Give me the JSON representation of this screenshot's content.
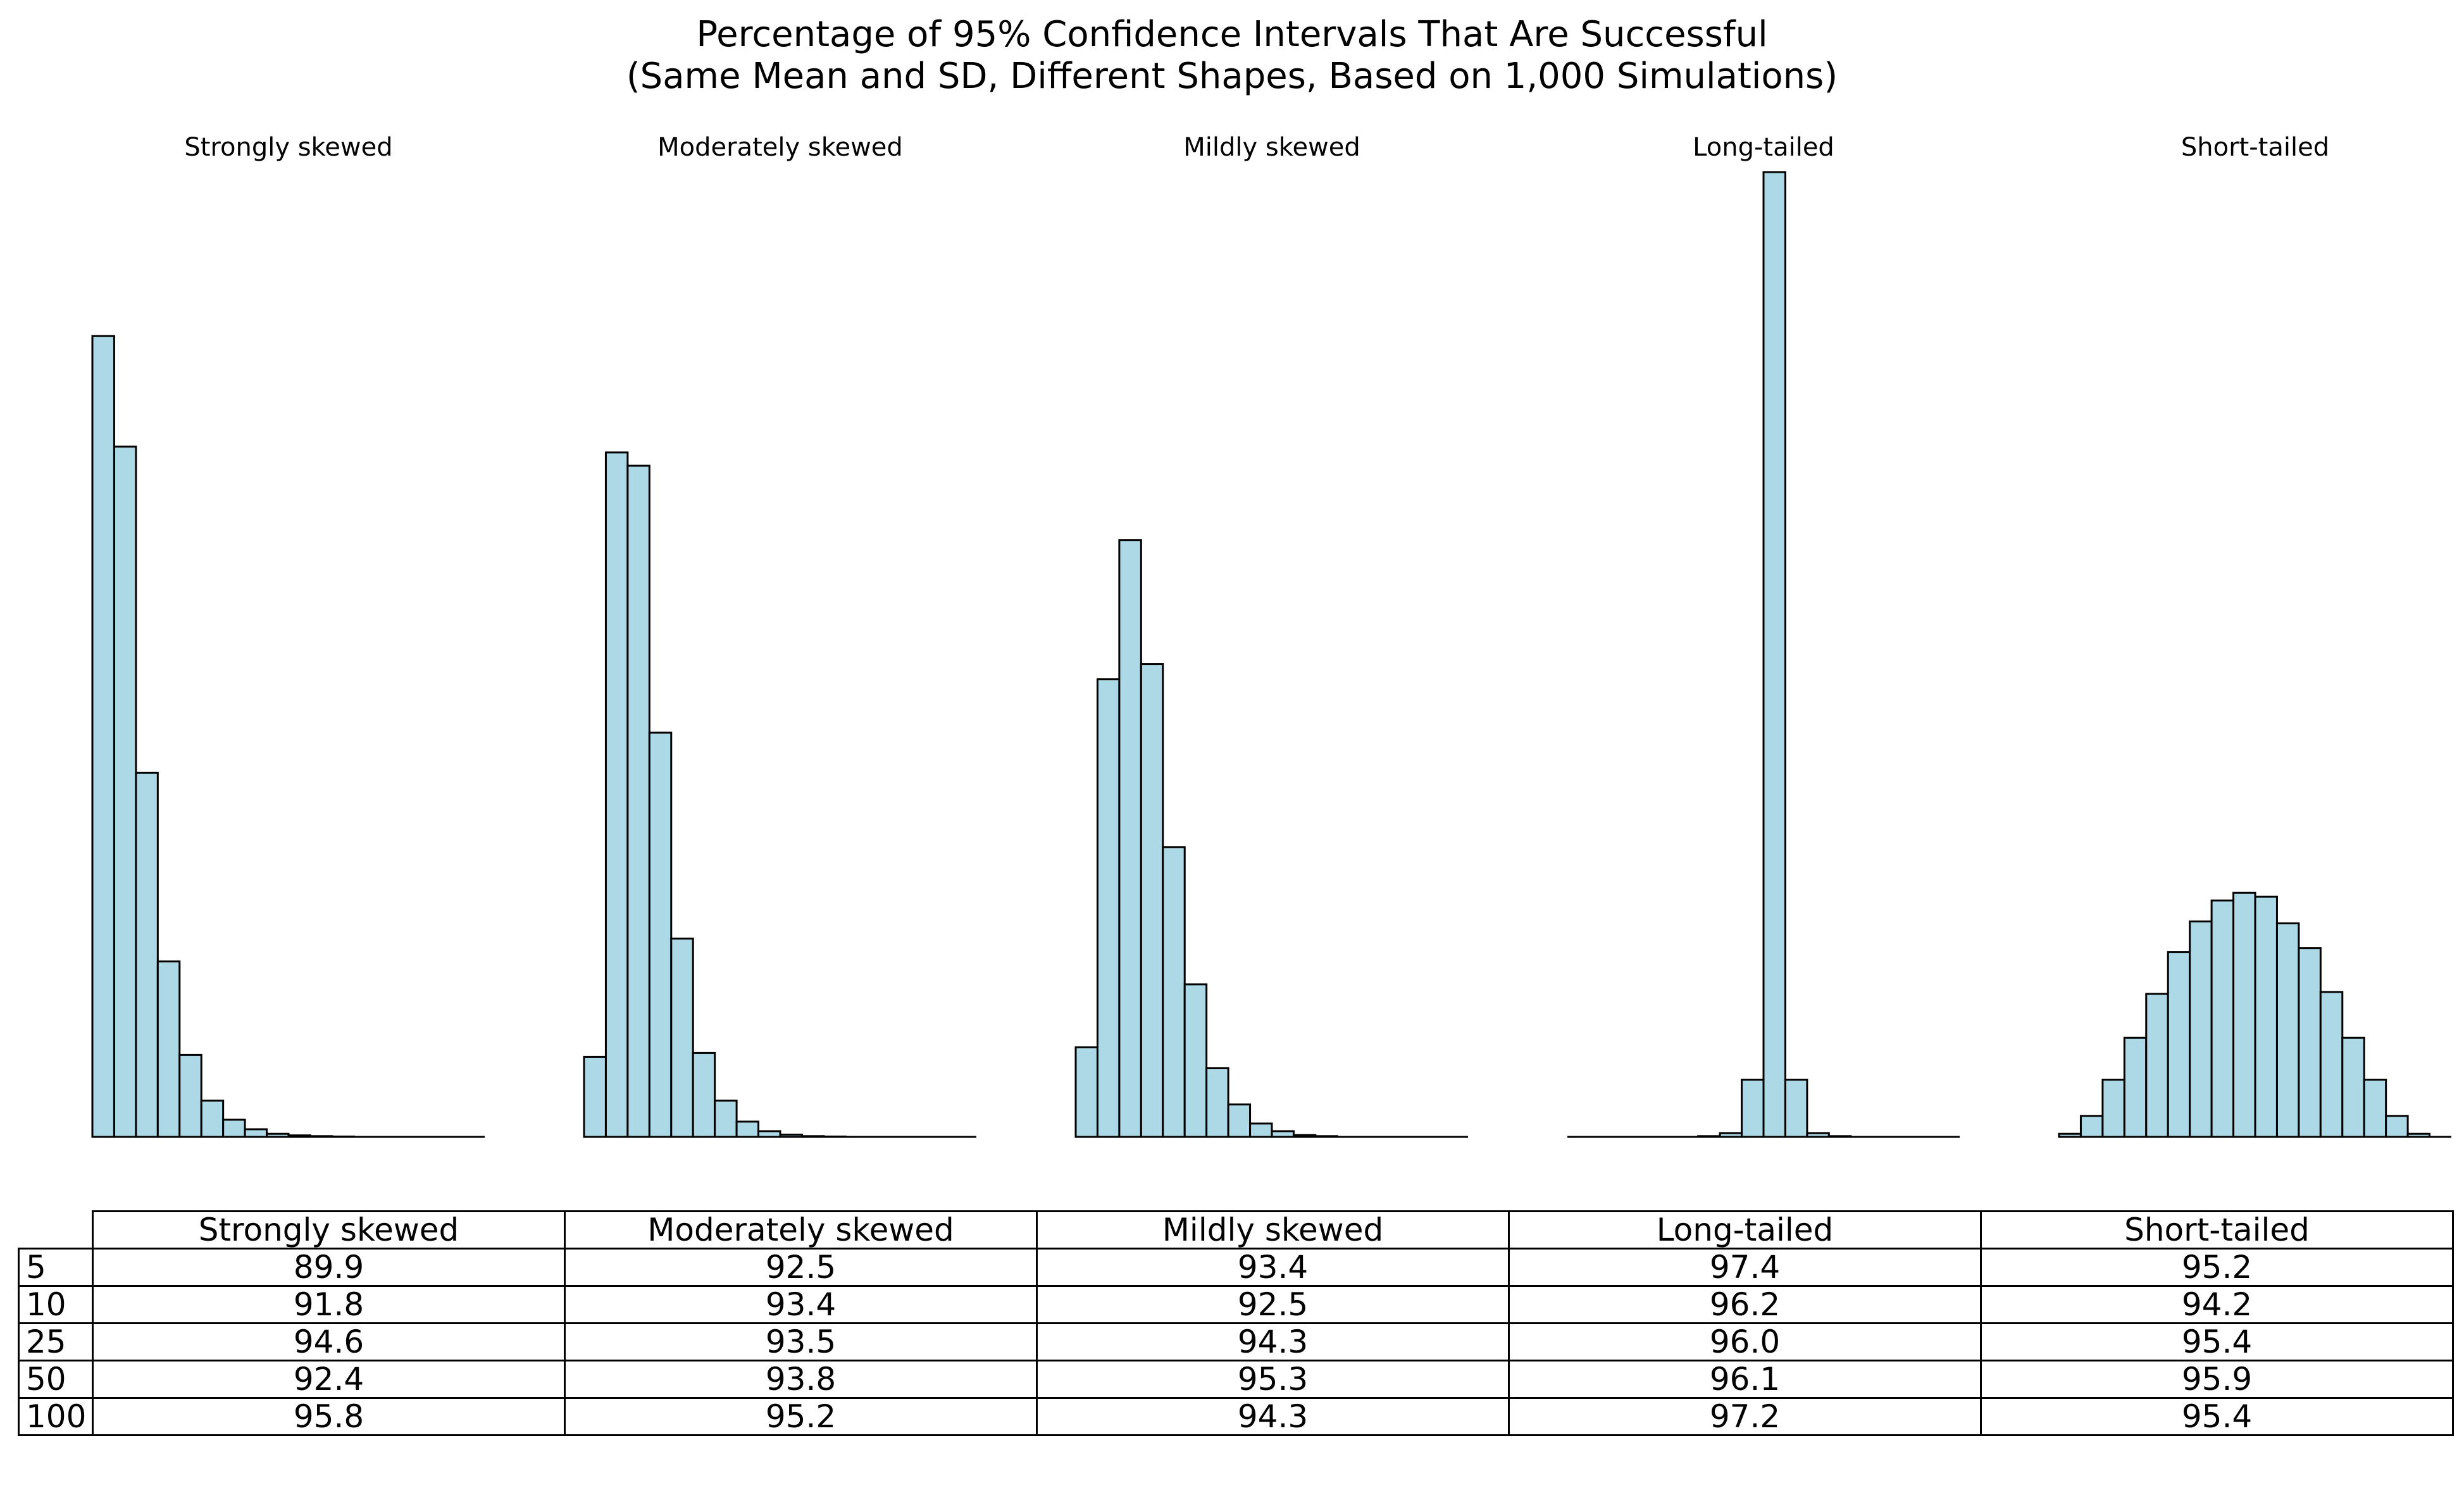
{
  "title_line1": "Percentage of 95% Confidence Intervals That Are Successful",
  "title_line2": "(Same Mean and SD, Different Shapes, Based on 1,000 Simulations)",
  "colors": {
    "bar_fill": "#add8e6",
    "bar_edge": "#000000"
  },
  "chart_data": [
    {
      "type": "bar",
      "title": "Strongly skewed",
      "xlabel": "",
      "ylabel": "",
      "axes": "off",
      "values": [
        2100,
        1810,
        955,
        460,
        215,
        95,
        45,
        20,
        8,
        4,
        2,
        1,
        0,
        0,
        0,
        0,
        0,
        0
      ]
    },
    {
      "type": "bar",
      "title": "Moderately skewed",
      "xlabel": "",
      "ylabel": "",
      "axes": "off",
      "values": [
        210,
        1795,
        1760,
        1060,
        520,
        220,
        95,
        40,
        15,
        6,
        2,
        1,
        0,
        0,
        0,
        0,
        0,
        0
      ]
    },
    {
      "type": "bar",
      "title": "Mildly skewed",
      "xlabel": "",
      "ylabel": "",
      "axes": "off",
      "values": [
        235,
        1200,
        1565,
        1240,
        760,
        400,
        180,
        85,
        35,
        15,
        5,
        2,
        0,
        0,
        0,
        0,
        0,
        0
      ]
    },
    {
      "type": "bar",
      "title": "Long-tailed",
      "xlabel": "",
      "ylabel": "",
      "axes": "off",
      "values": [
        0,
        0,
        0,
        0,
        0,
        0,
        2,
        10,
        150,
        2530,
        150,
        10,
        2,
        0,
        0,
        0,
        0,
        0
      ]
    },
    {
      "type": "bar",
      "title": "Short-tailed",
      "xlabel": "",
      "ylabel": "",
      "axes": "off",
      "values": [
        8,
        55,
        150,
        260,
        375,
        485,
        565,
        620,
        640,
        630,
        560,
        495,
        380,
        260,
        150,
        55,
        8,
        0
      ]
    },
    {
      "type": "table",
      "columns": [
        "Strongly skewed",
        "Moderately skewed",
        "Mildly skewed",
        "Long-tailed",
        "Short-tailed"
      ],
      "rows": [
        {
          "label": "5",
          "values": [
            "89.9",
            "92.5",
            "93.4",
            "97.4",
            "95.2"
          ]
        },
        {
          "label": "10",
          "values": [
            "91.8",
            "93.4",
            "92.5",
            "96.2",
            "94.2"
          ]
        },
        {
          "label": "25",
          "values": [
            "94.6",
            "93.5",
            "94.3",
            "96.0",
            "95.4"
          ]
        },
        {
          "label": "50",
          "values": [
            "92.4",
            "93.8",
            "95.3",
            "96.1",
            "95.9"
          ]
        },
        {
          "label": "100",
          "values": [
            "95.8",
            "95.2",
            "94.3",
            "97.2",
            "95.4"
          ]
        }
      ]
    }
  ]
}
